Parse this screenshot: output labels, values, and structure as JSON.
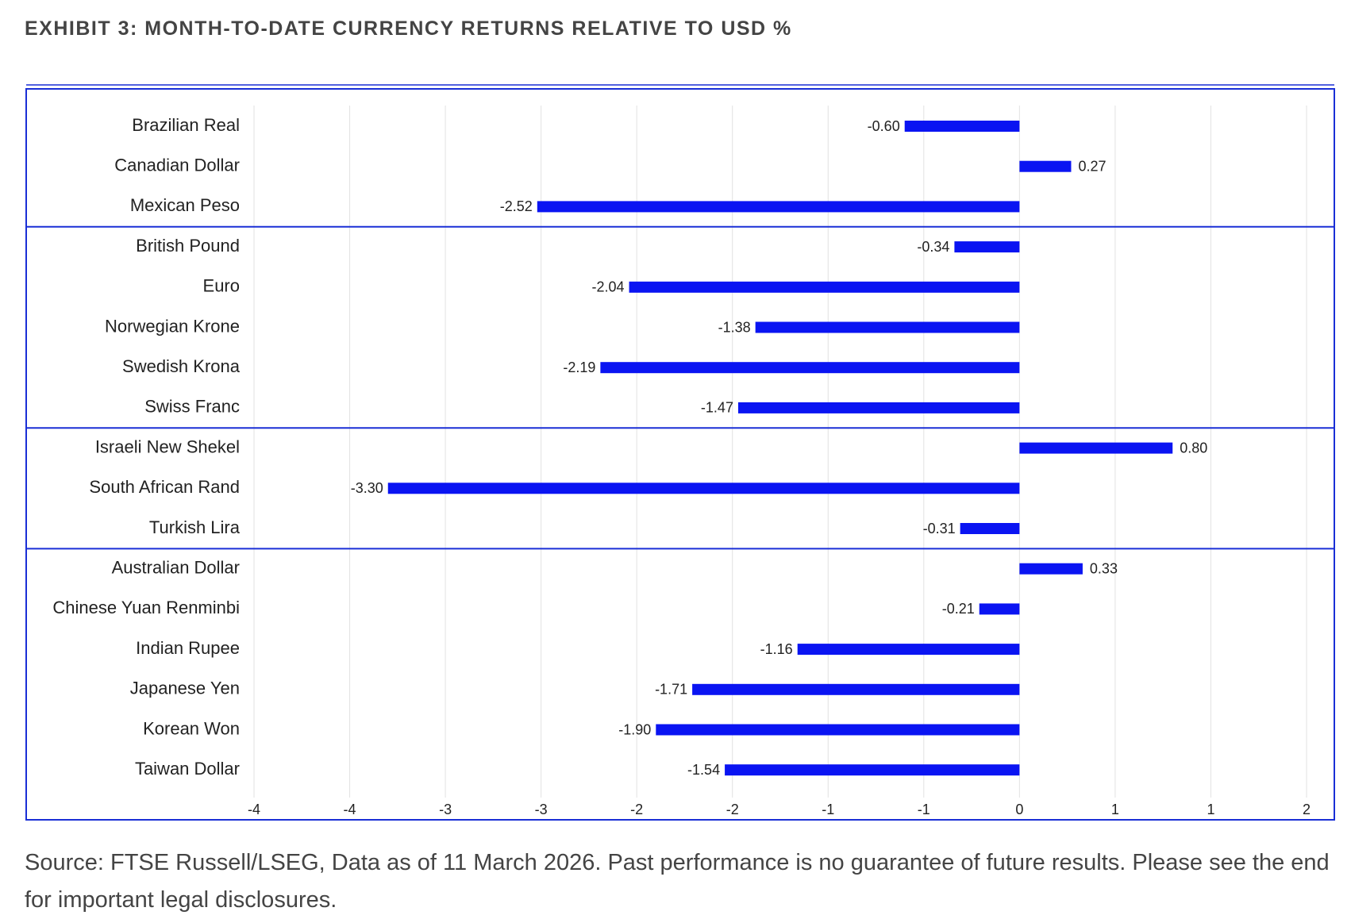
{
  "title": "EXHIBIT 3: MONTH-TO-DATE CURRENCY RETURNS RELATIVE TO USD %",
  "footer": "Source: FTSE Russell/LSEG, Data as of 11 March 2026. Past performance is no guarantee of future results. Please see the end for important legal disclosures.",
  "chart_data": {
    "type": "bar",
    "orientation": "horizontal",
    "color": "#0a14f2",
    "grid": true,
    "xlim": [
      -4,
      1.5
    ],
    "xticks": [
      -4,
      {
        "value": -3.5,
        "label": "-4"
      },
      -3,
      {
        "value": -2.5,
        "label": "-3"
      },
      -2,
      {
        "value": -1.5,
        "label": "-2"
      },
      -1,
      {
        "value": -0.5,
        "label": "-1"
      },
      0,
      {
        "value": 0.5,
        "label": "1"
      },
      1,
      {
        "value": 1.5,
        "label": "2"
      }
    ],
    "groups": [
      {
        "categories": [
          "Brazilian Real",
          "Canadian Dollar",
          "Mexican Peso"
        ],
        "values": [
          -0.6,
          0.27,
          -2.52
        ],
        "value_labels": [
          "-0.60",
          "0.27",
          "-2.52"
        ]
      },
      {
        "categories": [
          "British Pound",
          "Euro",
          "Norwegian Krone",
          "Swedish Krona",
          "Swiss Franc"
        ],
        "values": [
          -0.34,
          -2.04,
          -1.38,
          -2.19,
          -1.47
        ],
        "value_labels": [
          "-0.34",
          "-2.04",
          "-1.38",
          "-2.19",
          "-1.47"
        ]
      },
      {
        "categories": [
          "Israeli New Shekel",
          "South African Rand",
          "Turkish Lira"
        ],
        "values": [
          0.8,
          -3.3,
          -0.31
        ],
        "value_labels": [
          "0.80",
          "-3.30",
          "-0.31"
        ]
      },
      {
        "categories": [
          "Australian Dollar",
          "Chinese Yuan Renminbi",
          "Indian Rupee",
          "Japanese Yen",
          "Korean Won",
          "Taiwan Dollar"
        ],
        "values": [
          0.33,
          -0.21,
          -1.16,
          -1.71,
          -1.9,
          -1.54
        ],
        "value_labels": [
          "0.33",
          "-0.21",
          "-1.16",
          "-1.71",
          "-1.90",
          "-1.54"
        ]
      }
    ]
  }
}
